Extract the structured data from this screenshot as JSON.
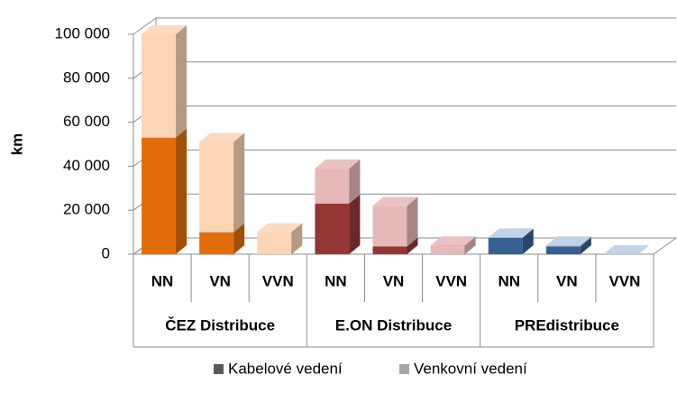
{
  "chart_data": {
    "type": "bar3d_stacked",
    "y_label": "km",
    "categories": [
      "NN",
      "VN",
      "VVN",
      "NN",
      "VN",
      "VVN",
      "NN",
      "VN",
      "VVN"
    ],
    "groups": [
      "ČEZ Distribuce",
      "E.ON Distribuce",
      "PREdistribuce"
    ],
    "series": [
      {
        "name": "Kabelové vedení",
        "color": "#595959",
        "point_colors": [
          "#e36c0a",
          "#e36c0a",
          "#e36c0a",
          "#953735",
          "#953735",
          "#953735",
          "#376092",
          "#376092",
          "#376092"
        ],
        "values": [
          53000,
          10000,
          0,
          23000,
          3500,
          0,
          7500,
          3500,
          0
        ]
      },
      {
        "name": "Venkovní vedení",
        "color": "#a6a6a6",
        "point_colors": [
          "#fcd5b5",
          "#fcd5b5",
          "#fcd5b5",
          "#e6b9b8",
          "#e6b9b8",
          "#e6b9b8",
          "#b9cde5",
          "#b9cde5",
          "#b9cde5"
        ],
        "values": [
          47000,
          41000,
          10000,
          16000,
          18500,
          4000,
          0,
          500,
          0
        ]
      }
    ],
    "ylim": [
      0,
      100000
    ],
    "yticks": [
      0,
      {
        "value": 20000,
        "label": "20 000"
      },
      {
        "value": 40000,
        "label": "40 000"
      },
      {
        "value": 60000,
        "label": "60 000"
      },
      {
        "value": 80000,
        "label": "80 000"
      },
      {
        "value": 100000,
        "label": "100 000"
      }
    ],
    "grid": true
  }
}
